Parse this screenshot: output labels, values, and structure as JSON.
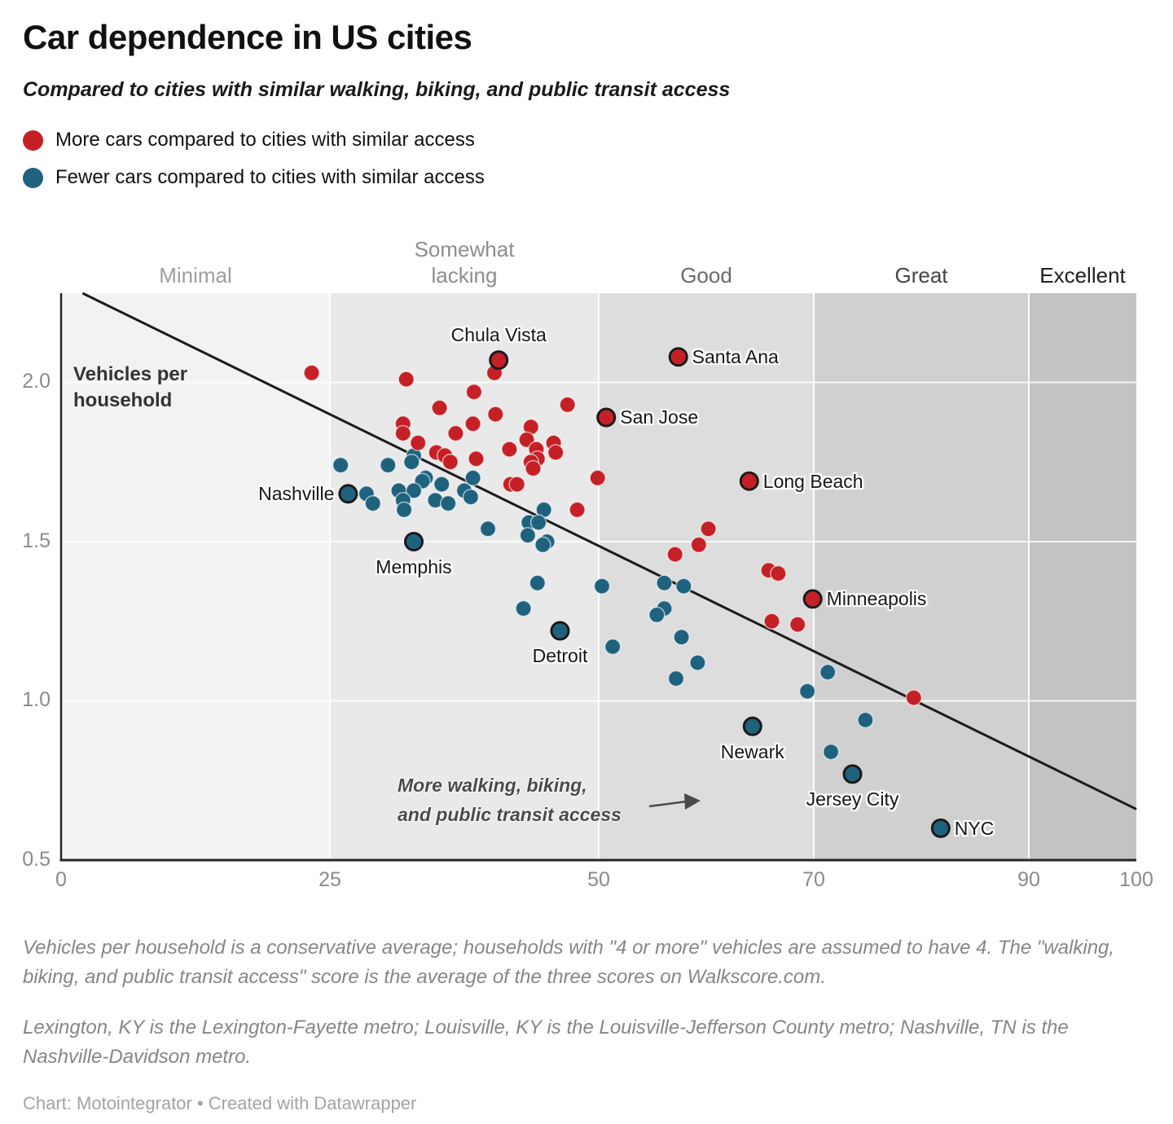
{
  "header": {
    "title": "Car dependence in US cities",
    "subtitle": "Compared to cities with similar walking, biking, and public transit access",
    "legend": [
      {
        "id": "more",
        "label": "More cars compared to cities with similar access",
        "color": "#c42026"
      },
      {
        "id": "fewer",
        "label": "Fewer cars compared to cities with similar access",
        "color": "#1f627e"
      }
    ]
  },
  "chart_data": {
    "type": "scatter",
    "title": "Car dependence in US cities",
    "xlabel": "walking, biking, and public transit access score",
    "ylabel": "Vehicles per household",
    "y_axis_title": "Vehicles per\nhousehold",
    "xlim": [
      0,
      100
    ],
    "ylim": [
      0.5,
      2.28
    ],
    "x_ticks": [
      0,
      25,
      50,
      70,
      90,
      100
    ],
    "y_ticks": [
      0.5,
      1.0,
      1.5,
      2.0
    ],
    "grid": true,
    "bands": [
      {
        "label": "Minimal",
        "from": 0,
        "to": 25,
        "fill": "#f2f2f2",
        "label_color": "#9e9e9e"
      },
      {
        "label": "Somewhat\nlacking",
        "from": 25,
        "to": 50,
        "fill": "#e9e9e9",
        "label_color": "#8d8d8d"
      },
      {
        "label": "Good",
        "from": 50,
        "to": 70,
        "fill": "#dddddd",
        "label_color": "#6b6b6b"
      },
      {
        "label": "Great",
        "from": 70,
        "to": 90,
        "fill": "#d0d0d0",
        "label_color": "#454545"
      },
      {
        "label": "Excellent",
        "from": 90,
        "to": 100,
        "fill": "#c3c3c3",
        "label_color": "#1f1f1f"
      }
    ],
    "trend_line": {
      "x1": 2,
      "y1": 2.28,
      "x2": 100,
      "y2": 0.66,
      "color": "#1c1c1c"
    },
    "annotation": {
      "lines": [
        "More walking, biking,",
        "and public transit access"
      ],
      "color": "#4a4a4a",
      "arrow": true
    },
    "series": [
      {
        "name": "Fewer cars compared to cities with similar access",
        "color": "#1f627e",
        "points": [
          [
            26.0,
            1.74
          ],
          [
            26.7,
            1.65,
            "Nashville",
            "left"
          ],
          [
            28.4,
            1.65
          ],
          [
            29.0,
            1.62
          ],
          [
            30.4,
            1.74
          ],
          [
            32.8,
            1.77
          ],
          [
            32.6,
            1.75
          ],
          [
            33.9,
            1.7
          ],
          [
            33.6,
            1.69
          ],
          [
            35.4,
            1.68
          ],
          [
            31.4,
            1.66
          ],
          [
            32.8,
            1.66
          ],
          [
            31.8,
            1.63
          ],
          [
            31.9,
            1.6
          ],
          [
            34.8,
            1.63
          ],
          [
            36.0,
            1.62
          ],
          [
            37.5,
            1.66
          ],
          [
            38.3,
            1.7
          ],
          [
            38.1,
            1.64
          ],
          [
            44.9,
            1.6
          ],
          [
            43.5,
            1.56
          ],
          [
            44.4,
            1.56
          ],
          [
            39.7,
            1.54
          ],
          [
            43.4,
            1.52
          ],
          [
            45.2,
            1.5
          ],
          [
            44.8,
            1.49
          ],
          [
            32.8,
            1.5,
            "Memphis",
            "below"
          ],
          [
            44.3,
            1.37
          ],
          [
            50.3,
            1.36
          ],
          [
            56.1,
            1.37
          ],
          [
            57.9,
            1.36
          ],
          [
            43.0,
            1.29
          ],
          [
            56.1,
            1.29
          ],
          [
            55.4,
            1.27
          ],
          [
            46.4,
            1.22,
            "Detroit",
            "below"
          ],
          [
            51.3,
            1.17
          ],
          [
            57.7,
            1.2
          ],
          [
            59.2,
            1.12
          ],
          [
            57.2,
            1.07
          ],
          [
            71.3,
            1.09
          ],
          [
            69.4,
            1.03
          ],
          [
            74.8,
            0.94
          ],
          [
            71.6,
            0.84
          ],
          [
            64.3,
            0.92,
            "Newark",
            "below"
          ],
          [
            73.6,
            0.77,
            "Jersey City",
            "below"
          ],
          [
            81.8,
            0.6,
            "NYC",
            "right"
          ]
        ]
      },
      {
        "name": "More cars compared to cities with similar access",
        "color": "#c42026",
        "points": [
          [
            23.3,
            2.03
          ],
          [
            32.1,
            2.01
          ],
          [
            40.7,
            2.07,
            "Chula Vista",
            "above"
          ],
          [
            40.3,
            2.03
          ],
          [
            38.4,
            1.97
          ],
          [
            35.2,
            1.92
          ],
          [
            40.4,
            1.9
          ],
          [
            47.1,
            1.93
          ],
          [
            50.7,
            1.89,
            "San Jose",
            "right"
          ],
          [
            31.8,
            1.87
          ],
          [
            31.8,
            1.84
          ],
          [
            38.3,
            1.87
          ],
          [
            36.7,
            1.84
          ],
          [
            43.7,
            1.86
          ],
          [
            43.3,
            1.82
          ],
          [
            41.7,
            1.79
          ],
          [
            44.2,
            1.79
          ],
          [
            44.3,
            1.76
          ],
          [
            43.7,
            1.75
          ],
          [
            43.9,
            1.73
          ],
          [
            45.8,
            1.81
          ],
          [
            46.0,
            1.78
          ],
          [
            33.2,
            1.81
          ],
          [
            34.9,
            1.78
          ],
          [
            35.7,
            1.77
          ],
          [
            36.2,
            1.75
          ],
          [
            38.6,
            1.76
          ],
          [
            41.8,
            1.68
          ],
          [
            42.4,
            1.68
          ],
          [
            49.9,
            1.7
          ],
          [
            57.4,
            2.08,
            "Santa Ana",
            "right"
          ],
          [
            64.0,
            1.69,
            "Long Beach",
            "right"
          ],
          [
            48.0,
            1.6
          ],
          [
            60.2,
            1.54
          ],
          [
            57.1,
            1.46
          ],
          [
            59.3,
            1.49
          ],
          [
            65.8,
            1.41
          ],
          [
            66.7,
            1.4
          ],
          [
            66.1,
            1.25
          ],
          [
            68.5,
            1.24
          ],
          [
            69.9,
            1.32,
            "Minneapolis",
            "right"
          ],
          [
            79.3,
            1.01
          ]
        ]
      }
    ]
  },
  "footnotes": {
    "note1": "Vehicles per household is a conservative average; households with \"4 or more\" vehicles are assumed to have 4. The \"walking, biking, and public transit access\" score is the average of the three scores on Walkscore.com.",
    "note2": "Lexington, KY is the Lexington-Fayette metro; Louisville, KY is the Louisville-Jefferson County metro; Nashville, TN is the Nashville-Davidson metro.",
    "credit": "Chart: Motointegrator • Created with Datawrapper"
  }
}
